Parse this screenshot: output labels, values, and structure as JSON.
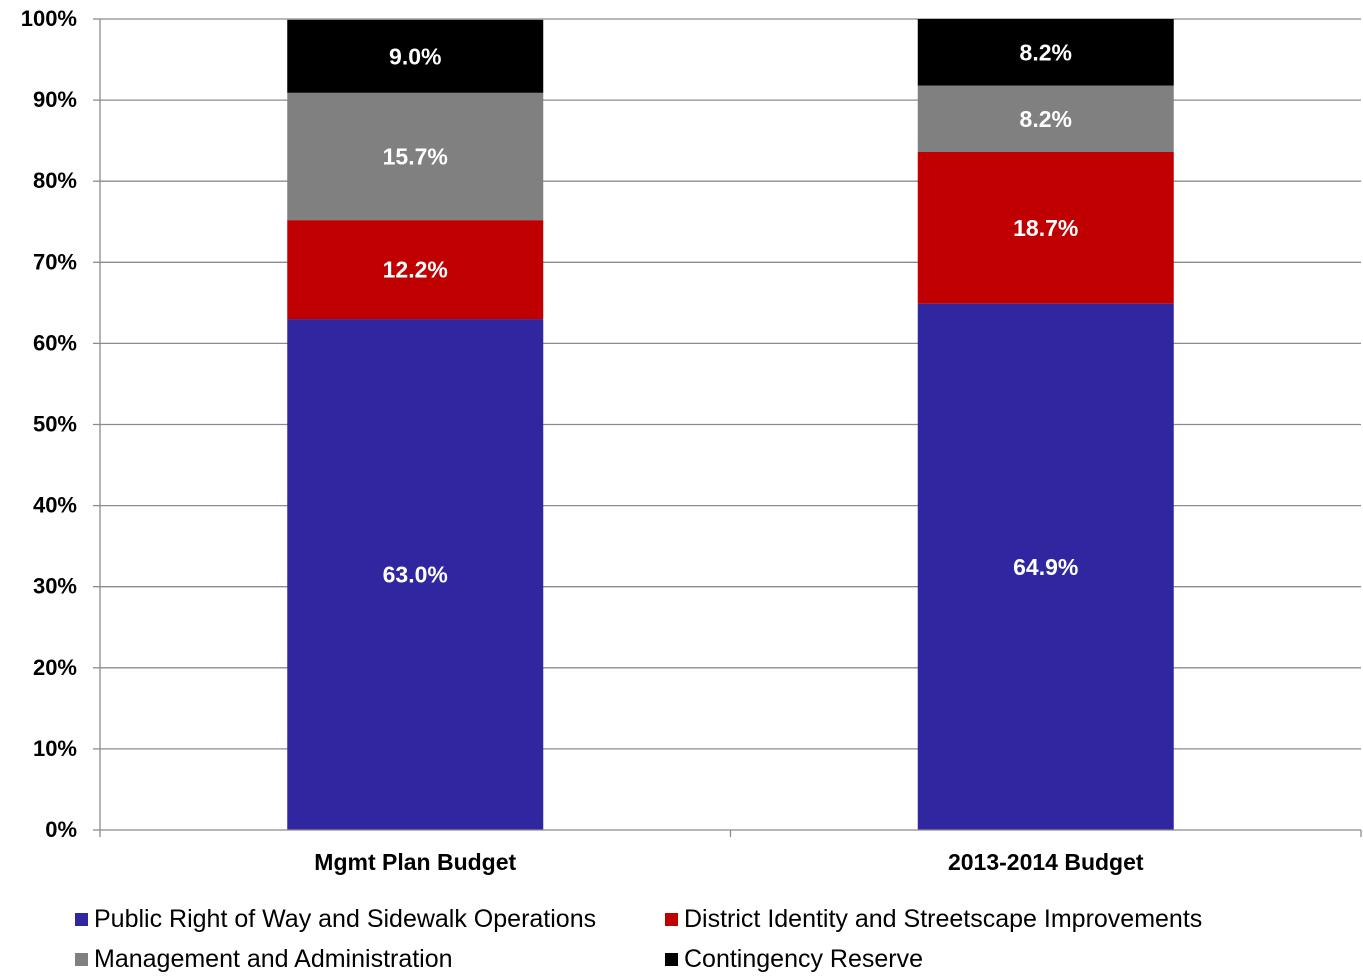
{
  "chart_data": {
    "type": "bar",
    "stacked": true,
    "normalized": true,
    "title": "",
    "xlabel": "",
    "ylabel": "",
    "ylim": [
      0,
      100
    ],
    "y_tick_step": 10,
    "grid": true,
    "legend_placement": "bottom",
    "categories": [
      "Mgmt Plan Budget",
      "2013-2014 Budget"
    ],
    "series": [
      {
        "name": "Public Right of Way and Sidewalk Operations",
        "color": "#3026A0",
        "values": [
          63.0,
          64.9
        ],
        "labels": [
          "63.0%",
          "64.9%"
        ]
      },
      {
        "name": "District Identity and Streetscape Improvements",
        "color": "#C00000",
        "values": [
          12.2,
          18.7
        ],
        "labels": [
          "12.2%",
          "18.7%"
        ]
      },
      {
        "name": "Management and Administration",
        "color": "#808080",
        "values": [
          15.7,
          8.2
        ],
        "labels": [
          "15.7%",
          "8.2%"
        ]
      },
      {
        "name": "Contingency Reserve",
        "color": "#000000",
        "values": [
          9.0,
          8.2
        ],
        "labels": [
          "9.0%",
          "8.2%"
        ]
      }
    ],
    "y_tick_labels": [
      "0%",
      "10%",
      "20%",
      "30%",
      "40%",
      "50%",
      "60%",
      "70%",
      "80%",
      "90%",
      "100%"
    ]
  }
}
